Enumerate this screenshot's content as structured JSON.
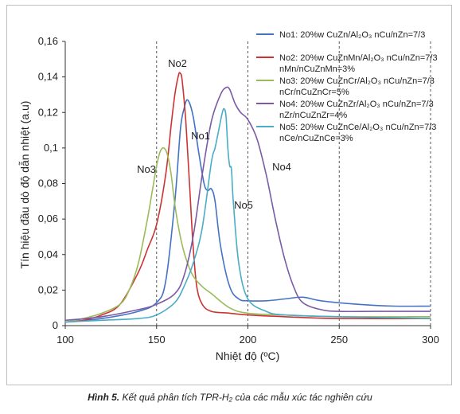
{
  "chart_data": {
    "type": "line",
    "xlabel": "Nhiệt độ (ºC)",
    "ylabel": "Tín hiệu đầu dò độ dẫn nhiệt (a.u)",
    "xlim": [
      100,
      300
    ],
    "ylim": [
      0,
      0.16
    ],
    "x_ticks": [
      "100",
      "150",
      "200",
      "250",
      "300"
    ],
    "y_ticks": [
      "0",
      "0,02",
      "0,04",
      "0,06",
      "0,08",
      "0,1",
      "0,12",
      "0,14",
      "0,16"
    ],
    "x_tick_values": [
      100,
      150,
      200,
      250,
      300
    ],
    "y_tick_values": [
      0,
      0.02,
      0.04,
      0.06,
      0.08,
      0.1,
      0.12,
      0.14,
      0.16
    ],
    "vertical_gridlines": [
      150,
      200,
      250,
      300
    ],
    "legend_position": "top-right",
    "series": [
      {
        "name": "No1: 20%w CuZn/Al₂O₃ nCu/nZn=7/3",
        "legend_lines": [
          "No1: 20%w CuZn/Al₂O₃ nCu/nZn=7/3"
        ],
        "color": "#4472c4",
        "label": "No1",
        "x": [
          100,
          120,
          140,
          150,
          155,
          160,
          163,
          165,
          167,
          170,
          173,
          176,
          178,
          180,
          182,
          185,
          190,
          195,
          200,
          210,
          220,
          230,
          240,
          260,
          280,
          300
        ],
        "y": [
          0.002,
          0.004,
          0.008,
          0.013,
          0.025,
          0.07,
          0.11,
          0.122,
          0.127,
          0.118,
          0.098,
          0.08,
          0.076,
          0.077,
          0.07,
          0.045,
          0.022,
          0.015,
          0.014,
          0.014,
          0.015,
          0.016,
          0.014,
          0.012,
          0.011,
          0.011
        ]
      },
      {
        "name": "No2: 20%w CuZnMn/Al₂O₃ nCu/nZn=7/3 nMn/nCuZnMn=3%",
        "legend_lines": [
          "No2: 20%w CuZnMn/Al₂O₃ nCu/nZn=7/3",
          "nMn/nCuZnMn=3%"
        ],
        "color": "#cc3333",
        "label": "No2",
        "x": [
          100,
          110,
          120,
          130,
          140,
          145,
          150,
          155,
          158,
          160,
          162,
          163,
          164,
          166,
          168,
          170,
          172,
          175,
          180,
          190,
          200,
          220,
          250,
          300
        ],
        "y": [
          0.002,
          0.003,
          0.006,
          0.012,
          0.03,
          0.043,
          0.057,
          0.085,
          0.113,
          0.13,
          0.141,
          0.142,
          0.138,
          0.115,
          0.08,
          0.045,
          0.022,
          0.012,
          0.008,
          0.007,
          0.006,
          0.005,
          0.004,
          0.004
        ]
      },
      {
        "name": "No3: 20%w CuZnCr/Al₂O₃ nCu/nZn=7/3 nCr/nCuZnCr=5%",
        "legend_lines": [
          "No3: 20%w CuZnCr/Al₂O₃ nCu/nZn=7/3",
          "nCr/nCuZnCr=5%"
        ],
        "color": "#9bbb59",
        "label": "No3",
        "x": [
          100,
          110,
          120,
          130,
          135,
          140,
          145,
          148,
          150,
          152,
          154,
          156,
          158,
          160,
          163,
          166,
          170,
          175,
          180,
          190,
          200,
          220,
          250,
          300
        ],
        "y": [
          0.002,
          0.004,
          0.007,
          0.012,
          0.02,
          0.035,
          0.06,
          0.078,
          0.09,
          0.098,
          0.1,
          0.096,
          0.085,
          0.068,
          0.05,
          0.038,
          0.028,
          0.022,
          0.018,
          0.01,
          0.007,
          0.006,
          0.005,
          0.005
        ]
      },
      {
        "name": "No4: 20%w CuZnZr/Al₂O₃ nCu/nZn=7/3 nZr/nCuZnZr=4%",
        "legend_lines": [
          "No4: 20%w CuZnZr/Al₂O₃ nCu/nZn=7/3",
          "nZr/nCuZnZr=4%"
        ],
        "color": "#7b5aa6",
        "label": "No4",
        "x": [
          100,
          120,
          140,
          150,
          160,
          165,
          170,
          175,
          180,
          185,
          188,
          190,
          193,
          196,
          200,
          205,
          210,
          215,
          220,
          225,
          230,
          240,
          250,
          270,
          300
        ],
        "y": [
          0.003,
          0.005,
          0.009,
          0.012,
          0.018,
          0.028,
          0.05,
          0.085,
          0.115,
          0.13,
          0.134,
          0.133,
          0.125,
          0.12,
          0.116,
          0.105,
          0.085,
          0.06,
          0.038,
          0.022,
          0.013,
          0.009,
          0.008,
          0.008,
          0.008
        ]
      },
      {
        "name": "No5: 20%w CuZnCe/Al₂O₃ nCu/nZn=7/3 nCe/nCuZnCe=3%",
        "legend_lines": [
          "No5: 20%w CuZnCe/Al₂O₃ nCu/nZn=7/3",
          "nCe/nCuZnCe=3%"
        ],
        "color": "#4bacc6",
        "label": "No5",
        "x": [
          100,
          120,
          140,
          150,
          160,
          165,
          170,
          175,
          180,
          182,
          184,
          186,
          187,
          188,
          189,
          190,
          191,
          192,
          195,
          200,
          210,
          220,
          250,
          300
        ],
        "y": [
          0.002,
          0.003,
          0.004,
          0.006,
          0.013,
          0.022,
          0.035,
          0.055,
          0.092,
          0.1,
          0.11,
          0.12,
          0.122,
          0.118,
          0.1,
          0.09,
          0.088,
          0.07,
          0.035,
          0.015,
          0.008,
          0.006,
          0.005,
          0.004
        ]
      }
    ]
  },
  "caption": {
    "lead": "Hình 5.",
    "text": " Kết quả phân tích TPR-H₂ của các mẫu xúc tác nghiên cứu"
  }
}
